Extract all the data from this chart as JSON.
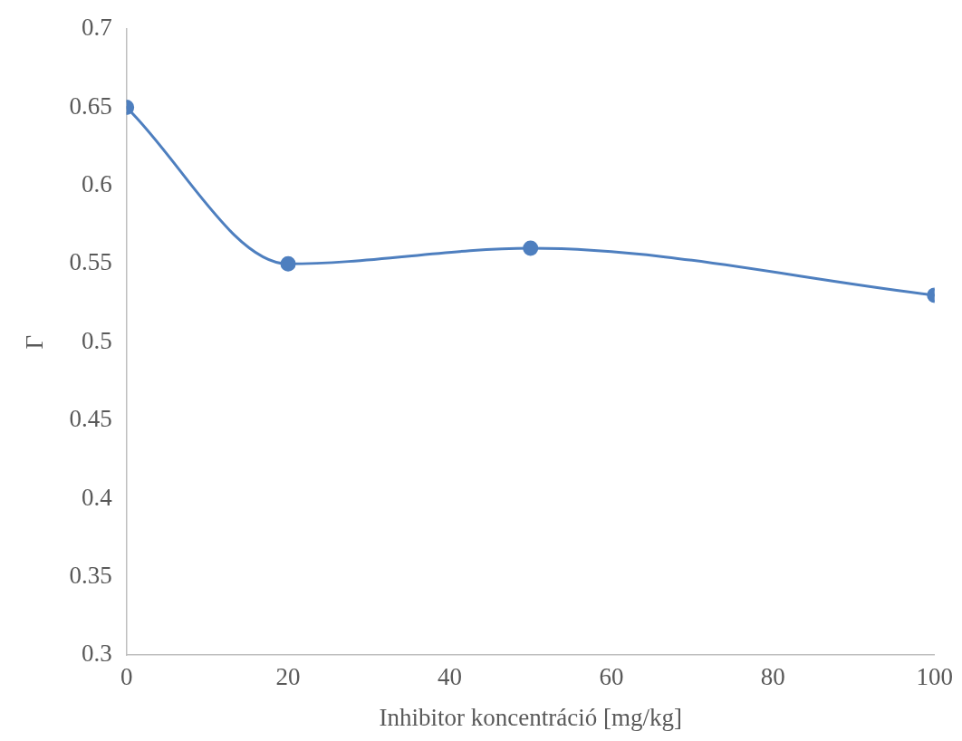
{
  "chart_data": {
    "type": "line",
    "xlabel": "Inhibitor koncentráció [mg/kg]",
    "ylabel": "Γ",
    "x": [
      0,
      20,
      50,
      100
    ],
    "series": [
      {
        "color": "#4e7fbf",
        "values": [
          0.65,
          0.55,
          0.56,
          0.53
        ]
      }
    ],
    "xlim": [
      0,
      100
    ],
    "xticks": [
      0,
      20,
      40,
      60,
      80,
      100
    ],
    "ylim": [
      0.3,
      0.7
    ],
    "yticks": [
      0.3,
      0.35,
      0.4,
      0.45,
      0.5,
      0.55,
      0.6,
      0.65,
      0.7
    ],
    "marker": "circle",
    "line_style": "solid",
    "legend": false
  }
}
